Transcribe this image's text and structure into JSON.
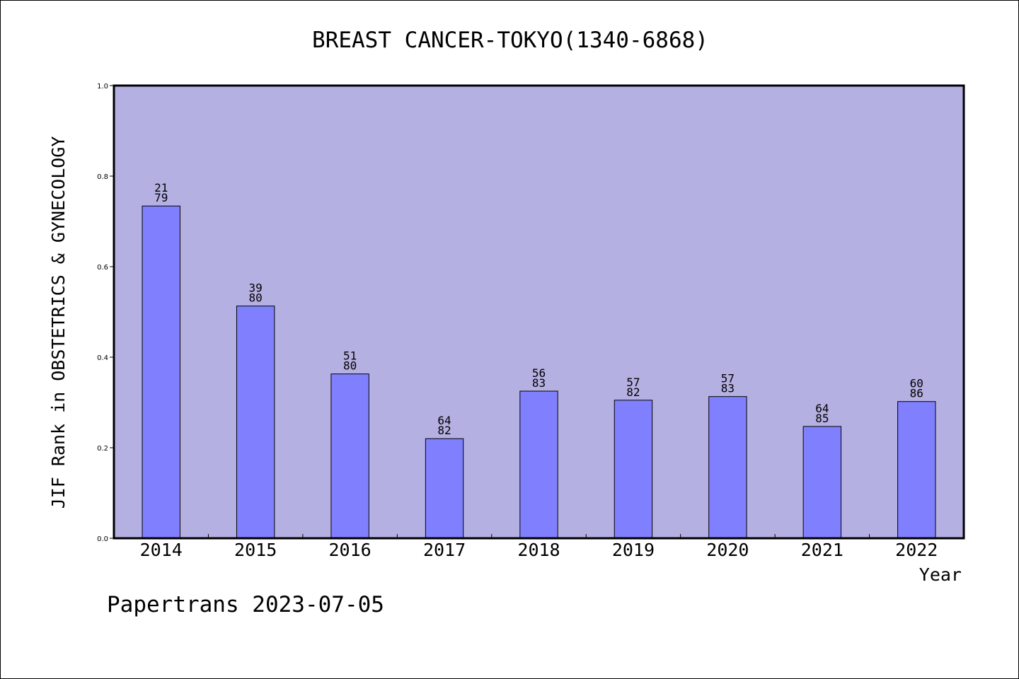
{
  "chart_data": {
    "type": "bar",
    "title": "BREAST CANCER-TOKYO(1340-6868)",
    "xlabel": "Year",
    "ylabel": "JIF Rank in OBSTETRICS & GYNECOLOGY",
    "ylim": [
      0,
      1.0
    ],
    "yticks": [
      "0.0",
      "0.2",
      "0.4",
      "0.6",
      "0.8",
      "1.0"
    ],
    "grid": false,
    "categories": [
      "2014",
      "2015",
      "2016",
      "2017",
      "2018",
      "2019",
      "2020",
      "2021",
      "2022"
    ],
    "values": [
      0.734,
      0.513,
      0.363,
      0.22,
      0.325,
      0.305,
      0.313,
      0.247,
      0.302
    ],
    "rank_labels": [
      "21",
      "39",
      "51",
      "64",
      "56",
      "57",
      "57",
      "64",
      "60"
    ],
    "total_labels": [
      "79",
      "80",
      "80",
      "82",
      "83",
      "82",
      "83",
      "85",
      "86"
    ],
    "colors": {
      "plot_background": "#b5b0e2",
      "bar_fill": "#8080ff",
      "bar_edge": "#000000",
      "axis": "#000000"
    }
  },
  "footer": {
    "text": "Papertrans 2023-07-05"
  }
}
